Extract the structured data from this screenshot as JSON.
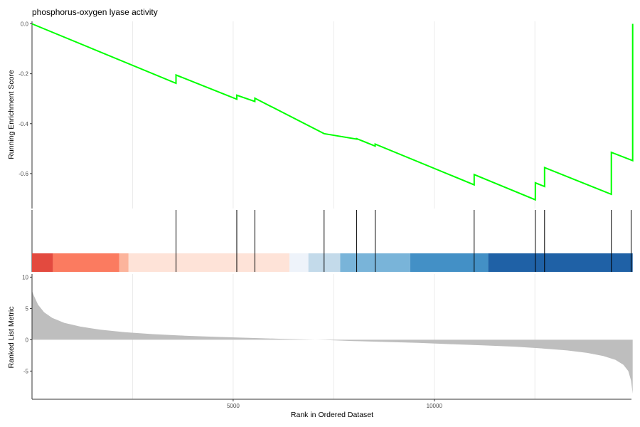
{
  "chart_data": {
    "type": "line",
    "title": "phosphorus-oxygen lyase activity",
    "xlabel": "Rank in Ordered Dataset",
    "x_ticks": [
      5000,
      10000
    ],
    "x_range": [
      0,
      14900
    ],
    "es_panel": {
      "ylabel": "Running Enrichment Score",
      "y_ticks": [
        0.0,
        -0.2,
        -0.4,
        -0.6
      ],
      "y_tick_labels": [
        "0.0",
        "-0.2",
        "-0.4",
        "-0.6"
      ],
      "ylim": [
        -0.74,
        0.01
      ],
      "line_color": "#00FF00",
      "points": [
        [
          0,
          0.0
        ],
        [
          3580,
          -0.238
        ],
        [
          3580,
          -0.205
        ],
        [
          5090,
          -0.302
        ],
        [
          5090,
          -0.286
        ],
        [
          5540,
          -0.311
        ],
        [
          5540,
          -0.298
        ],
        [
          7260,
          -0.44
        ],
        [
          7260,
          -0.44
        ],
        [
          8070,
          -0.462
        ],
        [
          8070,
          -0.46
        ],
        [
          8530,
          -0.49
        ],
        [
          8530,
          -0.482
        ],
        [
          10990,
          -0.645
        ],
        [
          10990,
          -0.604
        ],
        [
          12510,
          -0.705
        ],
        [
          12510,
          -0.637
        ],
        [
          12740,
          -0.652
        ],
        [
          12740,
          -0.576
        ],
        [
          14400,
          -0.683
        ],
        [
          14400,
          -0.515
        ],
        [
          14930,
          -0.548
        ],
        [
          14930,
          0.0
        ]
      ]
    },
    "hits_panel": {
      "hit_positions": [
        3580,
        5090,
        5540,
        7260,
        8070,
        8530,
        10990,
        12510,
        12740,
        14400,
        14930
      ],
      "color_bands": [
        {
          "from": 0,
          "to": 520,
          "color": "#E34A3F"
        },
        {
          "from": 520,
          "to": 2170,
          "color": "#FB7B60"
        },
        {
          "from": 2170,
          "to": 2400,
          "color": "#FCB49C"
        },
        {
          "from": 2400,
          "to": 6400,
          "color": "#FEE3D8"
        },
        {
          "from": 6400,
          "to": 6870,
          "color": "#EEF3FA"
        },
        {
          "from": 6870,
          "to": 7660,
          "color": "#C3DAEA"
        },
        {
          "from": 7660,
          "to": 9400,
          "color": "#79B4D9"
        },
        {
          "from": 9400,
          "to": 11340,
          "color": "#4390C6"
        },
        {
          "from": 11340,
          "to": 14930,
          "color": "#1F61A6"
        }
      ]
    },
    "metric_panel": {
      "ylabel": "Ranked List Metric",
      "y_ticks": [
        10,
        5,
        0,
        -5
      ],
      "y_tick_labels": [
        "10",
        "5",
        "0",
        "-5"
      ],
      "ylim": [
        -9.5,
        10.5
      ],
      "fill_color": "#BEBEBE",
      "curve": [
        [
          0,
          7.8
        ],
        [
          50,
          7.0
        ],
        [
          150,
          5.6
        ],
        [
          300,
          4.4
        ],
        [
          500,
          3.5
        ],
        [
          800,
          2.7
        ],
        [
          1200,
          2.1
        ],
        [
          1700,
          1.6
        ],
        [
          2300,
          1.2
        ],
        [
          3000,
          0.9
        ],
        [
          3800,
          0.65
        ],
        [
          4600,
          0.45
        ],
        [
          5400,
          0.3
        ],
        [
          6200,
          0.15
        ],
        [
          6800,
          0.05
        ],
        [
          7300,
          -0.05
        ],
        [
          8000,
          -0.2
        ],
        [
          8800,
          -0.35
        ],
        [
          9600,
          -0.5
        ],
        [
          10400,
          -0.7
        ],
        [
          11200,
          -0.9
        ],
        [
          12000,
          -1.1
        ],
        [
          12700,
          -1.4
        ],
        [
          13300,
          -1.7
        ],
        [
          13800,
          -2.1
        ],
        [
          14200,
          -2.6
        ],
        [
          14500,
          -3.2
        ],
        [
          14700,
          -4.0
        ],
        [
          14820,
          -5.0
        ],
        [
          14890,
          -6.5
        ],
        [
          14930,
          -8.6
        ]
      ]
    }
  }
}
